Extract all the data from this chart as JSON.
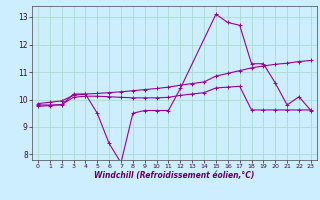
{
  "xlabel": "Windchill (Refroidissement éolien,°C)",
  "background_color": "#cceeff",
  "grid_color": "#aaddcc",
  "line_color": "#990099",
  "xlim": [
    -0.5,
    23.5
  ],
  "ylim": [
    7.8,
    13.4
  ],
  "xticks": [
    0,
    1,
    2,
    3,
    4,
    5,
    6,
    7,
    8,
    9,
    10,
    11,
    12,
    13,
    14,
    15,
    16,
    17,
    18,
    19,
    20,
    21,
    22,
    23
  ],
  "yticks": [
    8,
    9,
    10,
    11,
    12,
    13
  ],
  "series": [
    {
      "x": [
        0,
        1,
        2,
        3,
        4,
        5,
        6,
        7,
        8,
        9,
        10,
        11,
        12,
        15,
        16,
        17,
        18,
        19,
        20,
        21,
        22,
        23
      ],
      "y": [
        9.8,
        9.8,
        9.8,
        10.2,
        10.2,
        9.5,
        8.4,
        7.7,
        9.5,
        9.6,
        9.6,
        9.6,
        10.4,
        13.1,
        12.8,
        12.7,
        11.3,
        11.3,
        10.6,
        9.8,
        10.1,
        9.6
      ]
    },
    {
      "x": [
        0,
        1,
        2,
        3,
        4,
        5,
        6,
        7,
        8,
        9,
        10,
        11,
        12,
        13,
        14,
        15,
        16,
        17,
        18,
        19,
        20,
        21,
        22,
        23
      ],
      "y": [
        9.85,
        9.9,
        9.95,
        10.15,
        10.2,
        10.22,
        10.25,
        10.28,
        10.32,
        10.36,
        10.4,
        10.45,
        10.52,
        10.58,
        10.64,
        10.85,
        10.95,
        11.05,
        11.15,
        11.22,
        11.28,
        11.32,
        11.38,
        11.42
      ]
    },
    {
      "x": [
        0,
        1,
        2,
        3,
        4,
        5,
        6,
        7,
        8,
        9,
        10,
        11,
        12,
        13,
        14,
        15,
        16,
        17,
        18,
        19,
        20,
        21,
        22,
        23
      ],
      "y": [
        9.75,
        9.78,
        9.82,
        10.08,
        10.12,
        10.12,
        10.1,
        10.08,
        10.06,
        10.06,
        10.06,
        10.08,
        10.15,
        10.2,
        10.25,
        10.42,
        10.45,
        10.48,
        9.62,
        9.62,
        9.62,
        9.62,
        9.62,
        9.62
      ]
    }
  ]
}
